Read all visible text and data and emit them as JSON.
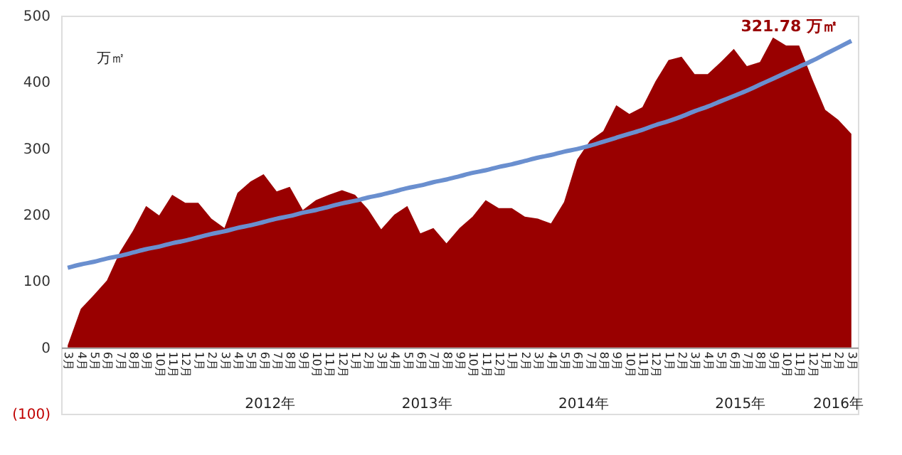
{
  "chart_data": {
    "type": "area",
    "ylabel": "万㎡",
    "categories": [
      "3月",
      "4月",
      "5月",
      "6月",
      "7月",
      "8月",
      "9月",
      "10月",
      "11月",
      "12月",
      "1月",
      "2月",
      "3月",
      "4月",
      "5月",
      "6月",
      "7月",
      "8月",
      "9月",
      "10月",
      "11月",
      "12月",
      "1月",
      "2月",
      "3月",
      "4月",
      "5月",
      "6月",
      "7月",
      "8月",
      "9月",
      "10月",
      "11月",
      "12月",
      "1月",
      "2月",
      "3月",
      "4月",
      "5月",
      "6月",
      "7月",
      "8月",
      "9月",
      "10月",
      "11月",
      "12月",
      "1月",
      "2月",
      "3月",
      "4月",
      "5月",
      "6月",
      "7月",
      "8月",
      "9月",
      "10月",
      "11月",
      "12月",
      "1月",
      "2月",
      "3月"
    ],
    "series": [
      {
        "color": "#990000",
        "values": [
          3,
          58,
          79,
          101,
          144,
          176,
          213,
          199,
          230,
          218,
          218,
          194,
          180,
          233,
          250,
          261,
          235,
          242,
          207,
          222,
          230,
          237,
          230,
          208,
          178,
          200,
          213,
          172,
          180,
          157,
          180,
          197,
          222,
          210,
          210,
          197,
          194,
          187,
          219,
          283,
          312,
          326,
          365,
          352,
          362,
          401,
          433,
          438,
          412,
          412,
          430,
          450,
          424,
          430,
          467,
          455,
          455,
          405,
          358,
          343,
          321.78
        ]
      },
      {
        "type": "line",
        "color": "#6a8fcf",
        "values": [
          120,
          125,
          129,
          134,
          138,
          143,
          148,
          152,
          157,
          161,
          166,
          171,
          175,
          180,
          184,
          189,
          194,
          198,
          203,
          207,
          212,
          217,
          221,
          226,
          230,
          235,
          240,
          244,
          249,
          253,
          258,
          263,
          267,
          272,
          276,
          281,
          286,
          290,
          295,
          299,
          304,
          310,
          316,
          322,
          328,
          335,
          341,
          348,
          356,
          363,
          371,
          379,
          387,
          396,
          405,
          414,
          423,
          432,
          442,
          452,
          462
        ]
      }
    ],
    "ylim": [
      -100,
      500
    ],
    "yticks": [
      {
        "value": -100,
        "label": "(100)"
      },
      0,
      100,
      200,
      300,
      400,
      500
    ],
    "grid": false,
    "annotations": [
      "321.78 万㎡",
      "2012年",
      "2013年",
      "2014年",
      "2015年",
      "2016年"
    ]
  }
}
